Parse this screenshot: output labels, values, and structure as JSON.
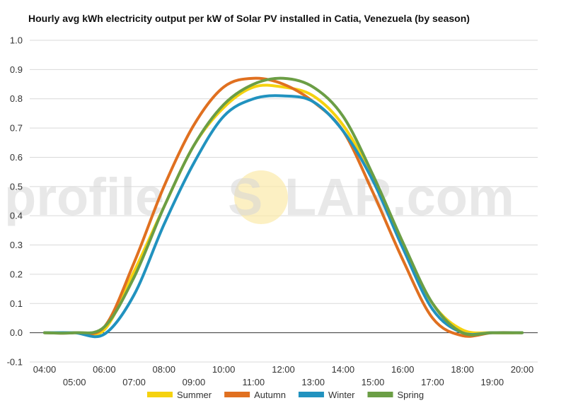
{
  "chart_data": {
    "type": "line",
    "title": "Hourly avg kWh electricity output per kW of Solar PV installed in Catia, Venezuela (by season)",
    "xlabel": "",
    "ylabel": "",
    "ylim": [
      -0.1,
      1.0
    ],
    "yticks": [
      "1.0",
      "0.9",
      "0.8",
      "0.7",
      "0.6",
      "0.5",
      "0.4",
      "0.3",
      "0.2",
      "0.1",
      "0.0",
      "-0.1"
    ],
    "x": [
      4,
      5,
      6,
      7,
      8,
      9,
      10,
      11,
      12,
      13,
      14,
      15,
      16,
      17,
      18,
      19,
      20
    ],
    "xtick_labels": [
      "04:00",
      "05:00",
      "06:00",
      "07:00",
      "08:00",
      "09:00",
      "10:00",
      "11:00",
      "12:00",
      "13:00",
      "14:00",
      "15:00",
      "16:00",
      "17:00",
      "18:00",
      "19:00",
      "20:00"
    ],
    "grid": true,
    "legend_position": "bottom",
    "series": [
      {
        "name": "Summer",
        "color": "#f5d20f",
        "values": [
          0.0,
          0.0,
          0.01,
          0.21,
          0.43,
          0.64,
          0.77,
          0.84,
          0.84,
          0.81,
          0.71,
          0.53,
          0.3,
          0.1,
          0.01,
          0.0,
          0.0
        ]
      },
      {
        "name": "Autumn",
        "color": "#e07020",
        "values": [
          0.0,
          0.0,
          0.02,
          0.24,
          0.5,
          0.71,
          0.84,
          0.87,
          0.85,
          0.79,
          0.69,
          0.48,
          0.25,
          0.05,
          -0.01,
          0.0,
          0.0
        ]
      },
      {
        "name": "Winter",
        "color": "#2192bf",
        "values": [
          0.0,
          0.0,
          -0.005,
          0.13,
          0.37,
          0.58,
          0.74,
          0.8,
          0.81,
          0.79,
          0.69,
          0.52,
          0.29,
          0.08,
          0.0,
          0.0,
          0.0
        ]
      },
      {
        "name": "Spring",
        "color": "#6b9e45",
        "values": [
          0.0,
          0.0,
          0.02,
          0.19,
          0.43,
          0.64,
          0.78,
          0.85,
          0.87,
          0.84,
          0.74,
          0.54,
          0.31,
          0.1,
          0.0,
          0.0,
          0.0
        ]
      }
    ]
  },
  "watermark": {
    "left": "profile",
    "sun_letter": "S",
    "right": "LAR.com"
  }
}
